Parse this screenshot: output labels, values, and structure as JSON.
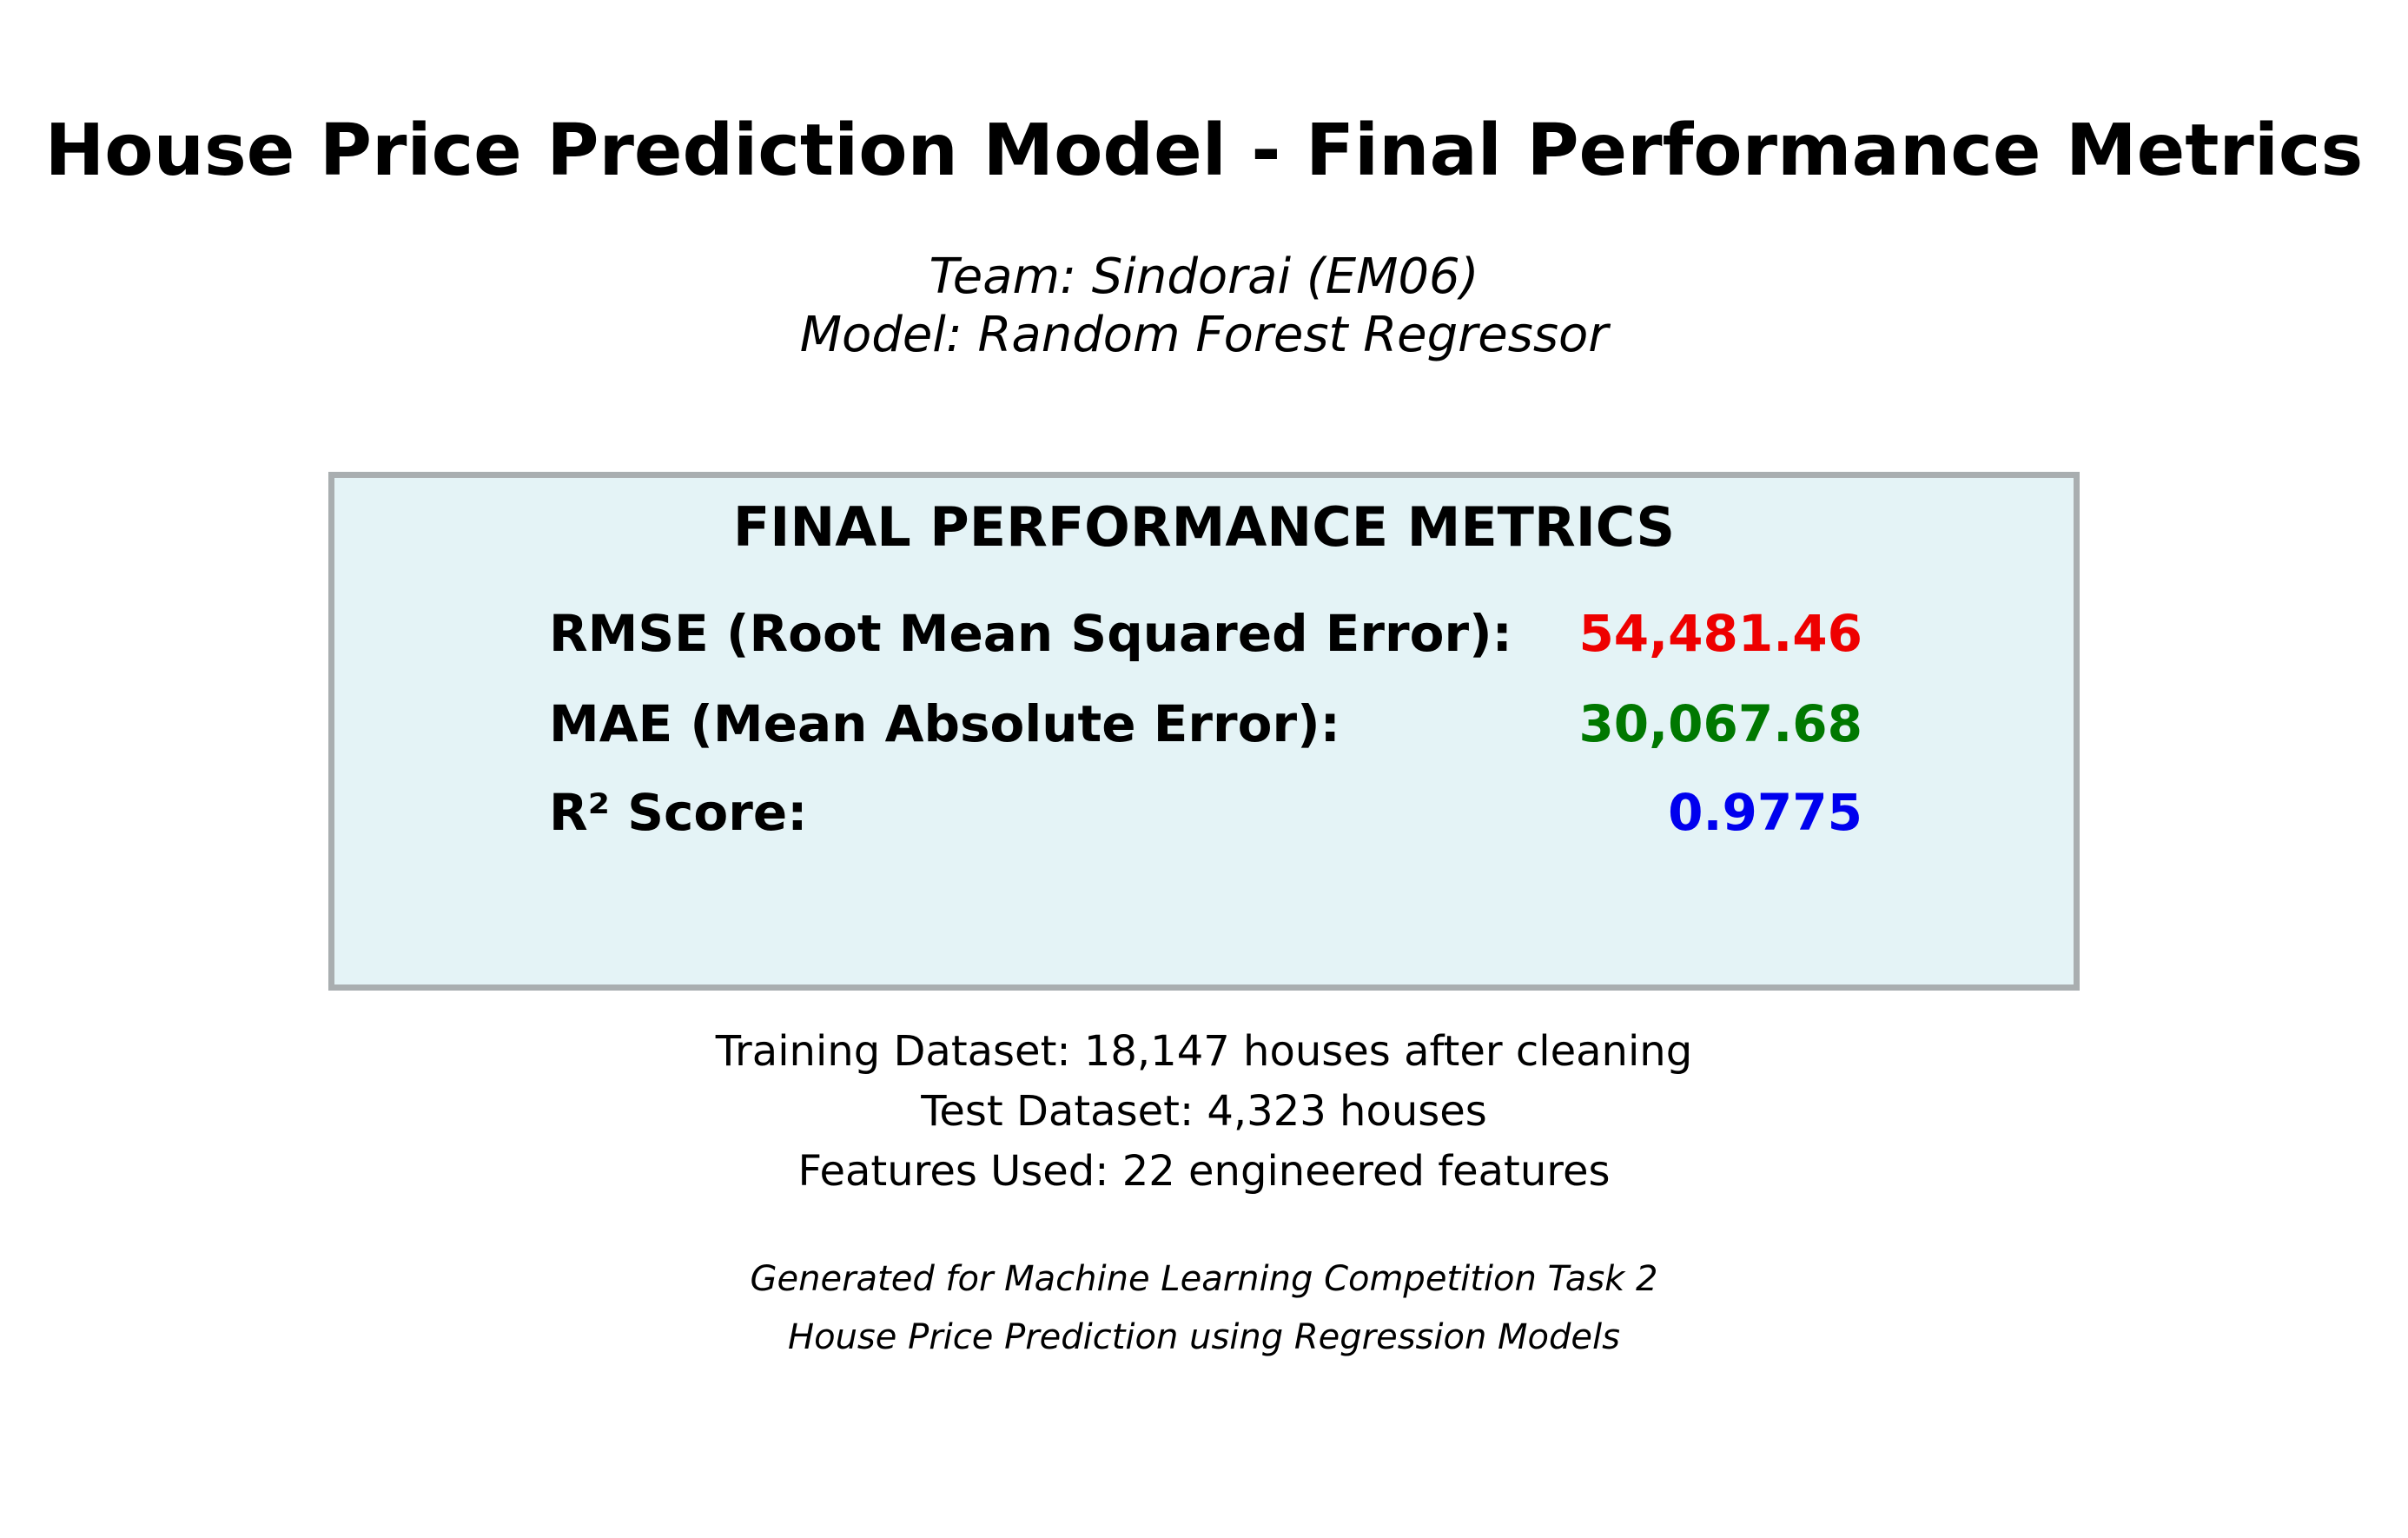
{
  "title": "House Price Prediction Model - Final Performance Metrics",
  "team": "Team: Sindorai (EM06)",
  "model": "Model: Random Forest Regressor",
  "metrics_box": {
    "heading": "FINAL PERFORMANCE METRICS",
    "metrics": [
      {
        "label": "RMSE (Root Mean Squared Error):",
        "value": "54,481.46",
        "color": "#ee0000"
      },
      {
        "label": "MAE (Mean Absolute Error):",
        "value": "30,067.68",
        "color": "#007800"
      },
      {
        "label": "R² Score:",
        "value": "0.9775",
        "color": "#0000ee"
      }
    ],
    "background_color": "#e4f3f6",
    "border_color": "#a9aeb0"
  },
  "info": [
    "Training Dataset: 18,147 houses after cleaning",
    "Test Dataset: 4,323 houses",
    "Features Used: 22 engineered features"
  ],
  "footer": [
    "Generated for Machine Learning Competition Task 2",
    "House Price Prediction using Regression Models"
  ]
}
